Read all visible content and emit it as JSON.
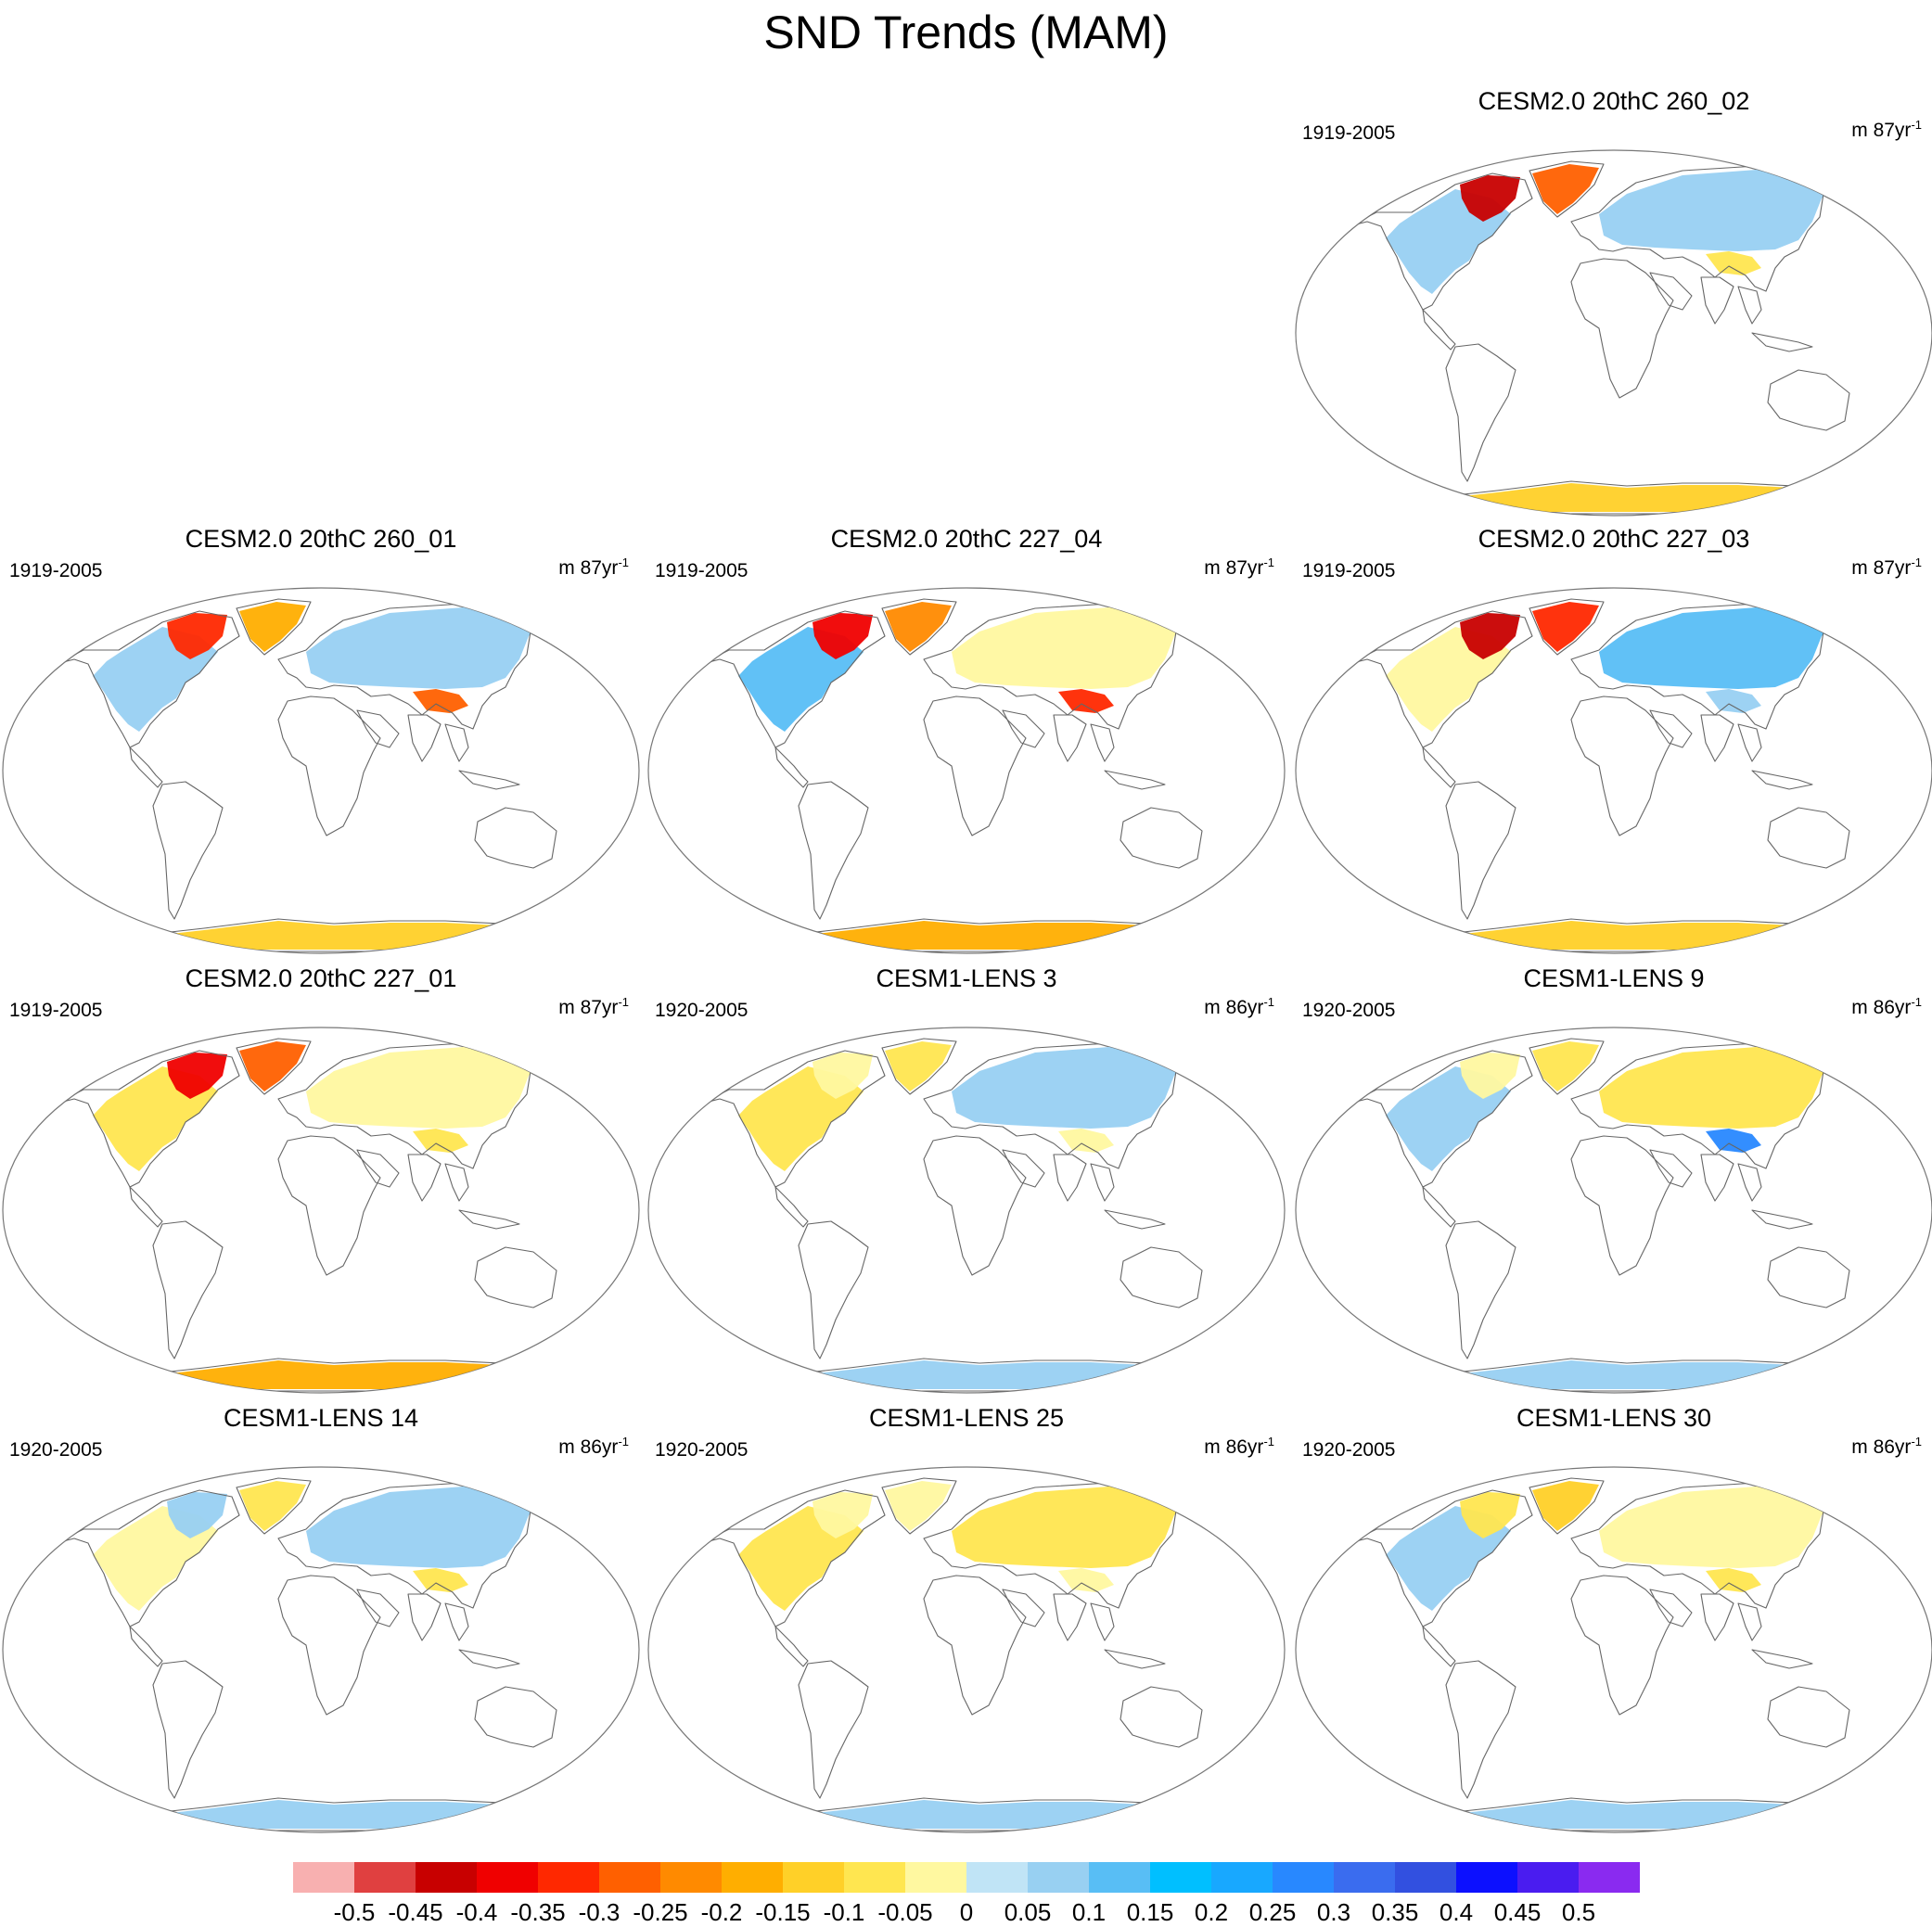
{
  "chart_data": {
    "type": "heatmap",
    "title": "SND Trends (MAM)",
    "projection": "Robinson",
    "variable": "SND",
    "season": "MAM",
    "colorbar": {
      "labels": [
        "-0.5",
        "-0.45",
        "-0.4",
        "-0.35",
        "-0.3",
        "-0.25",
        "-0.2",
        "-0.15",
        "-0.1",
        "-0.05",
        "0",
        "0.05",
        "0.1",
        "0.15",
        "0.2",
        "0.25",
        "0.3",
        "0.35",
        "0.4",
        "0.45",
        "0.5"
      ],
      "colors": [
        "#f8b0b0",
        "#e04040",
        "#c80000",
        "#f00000",
        "#ff2800",
        "#ff6000",
        "#ff8a00",
        "#ffae00",
        "#ffd028",
        "#ffe650",
        "#fff8a0",
        "#c0e4f6",
        "#98d0f2",
        "#58bef5",
        "#00bfff",
        "#18a8ff",
        "#2888ff",
        "#3a6cef",
        "#3250e0",
        "#0c10ff",
        "#4a1cf0",
        "#8a2af0"
      ]
    },
    "panels": [
      {
        "id": "cesm2-260-02",
        "title": "CESM2.0 20thC 260_02",
        "period": "1919-2005",
        "units_prefix": "m 87yr",
        "units_exp": "-1",
        "row": 0,
        "col": 2,
        "regions": [
          {
            "name": "North America",
            "trend": 0.05
          },
          {
            "name": "Canadian Arctic Archipelago",
            "trend": -0.45
          },
          {
            "name": "Greenland",
            "trend": -0.3
          },
          {
            "name": "Northern Eurasia",
            "trend": 0.05
          },
          {
            "name": "Tibetan Plateau",
            "trend": -0.1
          },
          {
            "name": "Antarctica",
            "trend": -0.15
          }
        ]
      },
      {
        "id": "cesm2-260-01",
        "title": "CESM2.0 20thC 260_01",
        "period": "1919-2005",
        "units_prefix": "m 87yr",
        "units_exp": "-1",
        "row": 1,
        "col": 0,
        "regions": [
          {
            "name": "North America",
            "trend": 0.05
          },
          {
            "name": "Canadian Arctic Archipelago",
            "trend": -0.35
          },
          {
            "name": "Greenland",
            "trend": -0.2
          },
          {
            "name": "Northern Eurasia",
            "trend": 0.05
          },
          {
            "name": "Tibetan Plateau",
            "trend": -0.3
          },
          {
            "name": "Antarctica",
            "trend": -0.15
          }
        ]
      },
      {
        "id": "cesm2-227-04",
        "title": "CESM2.0 20thC 227_04",
        "period": "1919-2005",
        "units_prefix": "m 87yr",
        "units_exp": "-1",
        "row": 1,
        "col": 1,
        "regions": [
          {
            "name": "North America",
            "trend": 0.1
          },
          {
            "name": "Canadian Arctic Archipelago",
            "trend": -0.4
          },
          {
            "name": "Greenland",
            "trend": -0.25
          },
          {
            "name": "Northern Eurasia",
            "trend": -0.05
          },
          {
            "name": "Tibetan Plateau",
            "trend": -0.35
          },
          {
            "name": "Antarctica",
            "trend": -0.2
          }
        ]
      },
      {
        "id": "cesm2-227-03",
        "title": "CESM2.0 20thC 227_03",
        "period": "1919-2005",
        "units_prefix": "m 87yr",
        "units_exp": "-1",
        "row": 1,
        "col": 2,
        "regions": [
          {
            "name": "North America",
            "trend": -0.05
          },
          {
            "name": "Canadian Arctic Archipelago",
            "trend": -0.45
          },
          {
            "name": "Greenland",
            "trend": -0.35
          },
          {
            "name": "Northern Eurasia",
            "trend": 0.1
          },
          {
            "name": "Tibetan Plateau",
            "trend": 0.05
          },
          {
            "name": "Antarctica",
            "trend": -0.15
          }
        ]
      },
      {
        "id": "cesm2-227-01",
        "title": "CESM2.0 20thC 227_01",
        "period": "1919-2005",
        "units_prefix": "m 87yr",
        "units_exp": "-1",
        "row": 2,
        "col": 0,
        "regions": [
          {
            "name": "North America",
            "trend": -0.1
          },
          {
            "name": "Canadian Arctic Archipelago",
            "trend": -0.4
          },
          {
            "name": "Greenland",
            "trend": -0.3
          },
          {
            "name": "Northern Eurasia",
            "trend": -0.05
          },
          {
            "name": "Tibetan Plateau",
            "trend": -0.1
          },
          {
            "name": "Antarctica",
            "trend": -0.2
          }
        ]
      },
      {
        "id": "cesm1-lens-3",
        "title": "CESM1-LENS 3",
        "period": "1920-2005",
        "units_prefix": "m 86yr",
        "units_exp": "-1",
        "row": 2,
        "col": 1,
        "regions": [
          {
            "name": "North America",
            "trend": -0.1
          },
          {
            "name": "Canadian Arctic Archipelago",
            "trend": -0.05
          },
          {
            "name": "Greenland",
            "trend": -0.1
          },
          {
            "name": "Northern Eurasia",
            "trend": 0.05
          },
          {
            "name": "Tibetan Plateau",
            "trend": -0.05
          },
          {
            "name": "Antarctica",
            "trend": 0.05
          }
        ]
      },
      {
        "id": "cesm1-lens-9",
        "title": "CESM1-LENS 9",
        "period": "1920-2005",
        "units_prefix": "m 86yr",
        "units_exp": "-1",
        "row": 2,
        "col": 2,
        "regions": [
          {
            "name": "North America",
            "trend": 0.05
          },
          {
            "name": "Canadian Arctic Archipelago",
            "trend": -0.05
          },
          {
            "name": "Greenland",
            "trend": -0.1
          },
          {
            "name": "Northern Eurasia",
            "trend": -0.1
          },
          {
            "name": "Tibetan Plateau",
            "trend": 0.25
          },
          {
            "name": "Antarctica",
            "trend": 0.05
          }
        ]
      },
      {
        "id": "cesm1-lens-14",
        "title": "CESM1-LENS 14",
        "period": "1920-2005",
        "units_prefix": "m 86yr",
        "units_exp": "-1",
        "row": 3,
        "col": 0,
        "regions": [
          {
            "name": "North America",
            "trend": -0.05
          },
          {
            "name": "Canadian Arctic Archipelago",
            "trend": 0.05
          },
          {
            "name": "Greenland",
            "trend": -0.1
          },
          {
            "name": "Northern Eurasia",
            "trend": 0.05
          },
          {
            "name": "Tibetan Plateau",
            "trend": -0.1
          },
          {
            "name": "Antarctica",
            "trend": 0.05
          }
        ]
      },
      {
        "id": "cesm1-lens-25",
        "title": "CESM1-LENS 25",
        "period": "1920-2005",
        "units_prefix": "m 86yr",
        "units_exp": "-1",
        "row": 3,
        "col": 1,
        "regions": [
          {
            "name": "North America",
            "trend": -0.1
          },
          {
            "name": "Canadian Arctic Archipelago",
            "trend": -0.05
          },
          {
            "name": "Greenland",
            "trend": -0.05
          },
          {
            "name": "Northern Eurasia",
            "trend": -0.1
          },
          {
            "name": "Tibetan Plateau",
            "trend": -0.05
          },
          {
            "name": "Antarctica",
            "trend": 0.05
          }
        ]
      },
      {
        "id": "cesm1-lens-30",
        "title": "CESM1-LENS 30",
        "period": "1920-2005",
        "units_prefix": "m 86yr",
        "units_exp": "-1",
        "row": 3,
        "col": 2,
        "regions": [
          {
            "name": "North America",
            "trend": 0.05
          },
          {
            "name": "Canadian Arctic Archipelago",
            "trend": -0.1
          },
          {
            "name": "Greenland",
            "trend": -0.15
          },
          {
            "name": "Northern Eurasia",
            "trend": -0.05
          },
          {
            "name": "Tibetan Plateau",
            "trend": -0.1
          },
          {
            "name": "Antarctica",
            "trend": 0.05
          }
        ]
      }
    ]
  }
}
